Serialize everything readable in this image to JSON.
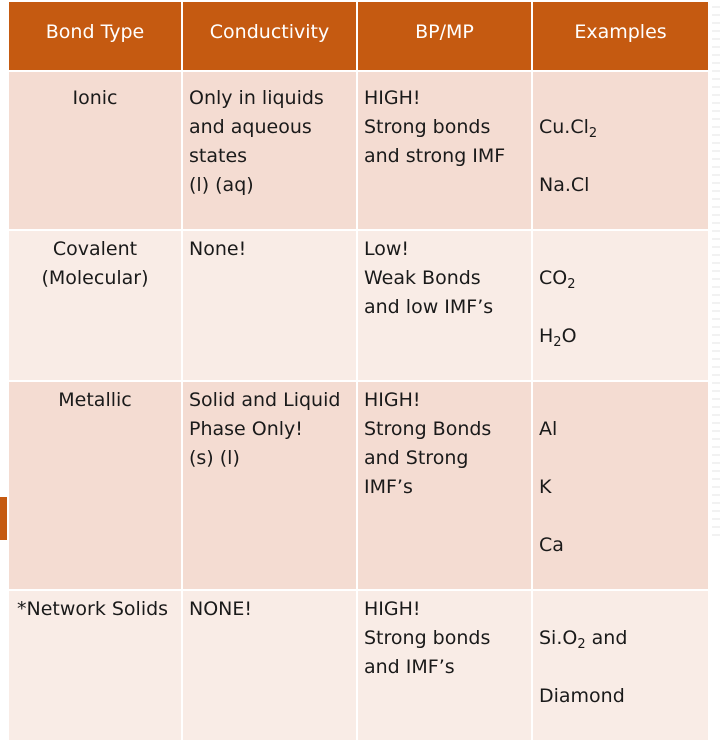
{
  "headers": [
    "Bond Type",
    "Conductivity",
    "BP/MP",
    "Examples"
  ],
  "rows": [
    {
      "bond_type": "Ionic",
      "conductivity": "Only in liquids\nand aqueous\nstates\n(l) (aq)",
      "bp_mp": "HIGH!\nStrong bonds\nand strong IMF",
      "examples": [
        {
          "base": "Cu.Cl",
          "sub": "2"
        },
        {
          "base": "Na.Cl",
          "sub": ""
        }
      ]
    },
    {
      "bond_type": "Covalent\n(Molecular)",
      "conductivity": "None!",
      "bp_mp": "Low!\nWeak Bonds\nand low IMF’s",
      "examples": [
        {
          "base": "CO",
          "sub": "2"
        },
        {
          "base": "H",
          "sub": "2",
          "tail": "O"
        }
      ]
    },
    {
      "bond_type": "Metallic",
      "conductivity": "Solid and Liquid\nPhase Only!\n(s)   (l)",
      "bp_mp": "HIGH!\nStrong Bonds\nand Strong\nIMF’s",
      "examples": [
        {
          "base": "Al",
          "sub": ""
        },
        {
          "base": "K",
          "sub": ""
        },
        {
          "base": "Ca",
          "sub": ""
        }
      ]
    },
    {
      "bond_type": "*Network Solids",
      "conductivity": "NONE!",
      "bp_mp": "HIGH!\nStrong bonds\nand IMF’s",
      "examples": [
        {
          "base": "Si.O",
          "sub": "2",
          "tail": " and"
        },
        {
          "base": "Diamond",
          "sub": ""
        }
      ]
    }
  ],
  "colors": {
    "header_bg": "#c55a11",
    "row_dark": "#f4dcd2",
    "row_light": "#f9ece6"
  }
}
